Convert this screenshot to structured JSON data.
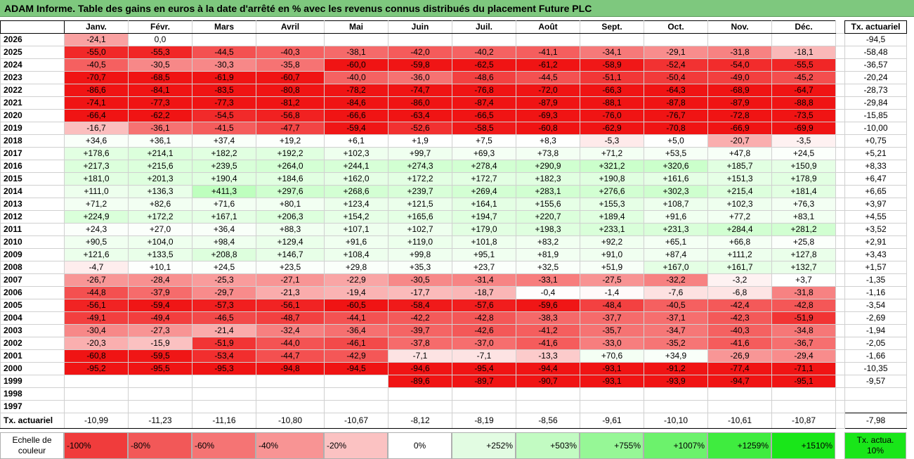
{
  "title": "ADAM Informe. Table des gains en euros à la date d'arrêté en % avec les revenus connus distribués du placement Future PLC",
  "months": [
    "Janv.",
    "Févr.",
    "Mars",
    "Avril",
    "Mai",
    "Juin",
    "Juil.",
    "Août",
    "Sept.",
    "Oct.",
    "Nov.",
    "Déc."
  ],
  "tx_header": "Tx. actuariel",
  "rows": [
    {
      "year": "2026",
      "vals": [
        "-24,1",
        "0,0",
        "",
        "",
        "",
        "",
        "",
        "",
        "",
        "",
        "",
        ""
      ],
      "tx": "-94,5"
    },
    {
      "year": "2025",
      "vals": [
        "-55,0",
        "-55,3",
        "-44,5",
        "-40,3",
        "-38,1",
        "-42,0",
        "-40,2",
        "-41,1",
        "-34,1",
        "-29,1",
        "-31,8",
        "-18,1"
      ],
      "tx": "-58,48"
    },
    {
      "year": "2024",
      "vals": [
        "-40,5",
        "-30,5",
        "-30,3",
        "-35,8",
        "-60,0",
        "-59,8",
        "-62,5",
        "-61,2",
        "-58,9",
        "-52,4",
        "-54,0",
        "-55,5"
      ],
      "tx": "-36,57"
    },
    {
      "year": "2023",
      "vals": [
        "-70,7",
        "-68,5",
        "-61,9",
        "-60,7",
        "-40,0",
        "-36,0",
        "-48,6",
        "-44,5",
        "-51,1",
        "-50,4",
        "-49,0",
        "-45,2"
      ],
      "tx": "-20,24"
    },
    {
      "year": "2022",
      "vals": [
        "-86,6",
        "-84,1",
        "-83,5",
        "-80,8",
        "-78,2",
        "-74,7",
        "-76,8",
        "-72,0",
        "-66,3",
        "-64,3",
        "-68,9",
        "-64,7"
      ],
      "tx": "-28,73"
    },
    {
      "year": "2021",
      "vals": [
        "-74,1",
        "-77,3",
        "-77,3",
        "-81,2",
        "-84,6",
        "-86,0",
        "-87,4",
        "-87,9",
        "-88,1",
        "-87,8",
        "-87,9",
        "-88,8"
      ],
      "tx": "-29,84"
    },
    {
      "year": "2020",
      "vals": [
        "-66,4",
        "-62,2",
        "-54,5",
        "-56,8",
        "-66,6",
        "-63,4",
        "-66,5",
        "-69,3",
        "-76,0",
        "-76,7",
        "-72,8",
        "-73,5"
      ],
      "tx": "-15,85"
    },
    {
      "year": "2019",
      "vals": [
        "-16,7",
        "-36,1",
        "-41,5",
        "-47,7",
        "-59,4",
        "-52,6",
        "-58,5",
        "-60,8",
        "-62,9",
        "-70,8",
        "-66,9",
        "-69,9"
      ],
      "tx": "-10,00"
    },
    {
      "year": "2018",
      "vals": [
        "+34,6",
        "+36,1",
        "+37,4",
        "+19,2",
        "+6,1",
        "+1,9",
        "+7,5",
        "+8,3",
        "-5,3",
        "+5,0",
        "-20,7",
        "-3,5"
      ],
      "tx": "+0,75"
    },
    {
      "year": "2017",
      "vals": [
        "+178,6",
        "+214,1",
        "+182,2",
        "+192,2",
        "+102,3",
        "+99,7",
        "+69,3",
        "+73,8",
        "+71,2",
        "+53,5",
        "+47,8",
        "+24,5"
      ],
      "tx": "+5,21"
    },
    {
      "year": "2016",
      "vals": [
        "+217,3",
        "+215,6",
        "+239,5",
        "+264,0",
        "+244,1",
        "+274,3",
        "+278,4",
        "+290,9",
        "+321,2",
        "+320,6",
        "+185,7",
        "+150,9"
      ],
      "tx": "+8,33"
    },
    {
      "year": "2015",
      "vals": [
        "+181,0",
        "+201,3",
        "+190,4",
        "+184,6",
        "+162,0",
        "+172,2",
        "+172,7",
        "+182,3",
        "+190,8",
        "+161,6",
        "+151,3",
        "+178,9"
      ],
      "tx": "+6,47"
    },
    {
      "year": "2014",
      "vals": [
        "+111,0",
        "+136,3",
        "+411,3",
        "+297,6",
        "+268,6",
        "+239,7",
        "+269,4",
        "+283,1",
        "+276,6",
        "+302,3",
        "+215,4",
        "+181,4"
      ],
      "tx": "+6,65"
    },
    {
      "year": "2013",
      "vals": [
        "+71,2",
        "+82,6",
        "+71,6",
        "+80,1",
        "+123,4",
        "+121,5",
        "+164,1",
        "+155,6",
        "+155,3",
        "+108,7",
        "+102,3",
        "+76,3"
      ],
      "tx": "+3,97"
    },
    {
      "year": "2012",
      "vals": [
        "+224,9",
        "+172,2",
        "+167,1",
        "+206,3",
        "+154,2",
        "+165,6",
        "+194,7",
        "+220,7",
        "+189,4",
        "+91,6",
        "+77,2",
        "+83,1"
      ],
      "tx": "+4,55"
    },
    {
      "year": "2011",
      "vals": [
        "+24,3",
        "+27,0",
        "+36,4",
        "+88,3",
        "+107,1",
        "+102,7",
        "+179,0",
        "+198,3",
        "+233,1",
        "+231,3",
        "+284,4",
        "+281,2"
      ],
      "tx": "+3,52"
    },
    {
      "year": "2010",
      "vals": [
        "+90,5",
        "+104,0",
        "+98,4",
        "+129,4",
        "+91,6",
        "+119,0",
        "+101,8",
        "+83,2",
        "+92,2",
        "+65,1",
        "+66,8",
        "+25,8"
      ],
      "tx": "+2,91"
    },
    {
      "year": "2009",
      "vals": [
        "+121,6",
        "+133,5",
        "+208,8",
        "+146,7",
        "+108,4",
        "+99,8",
        "+95,1",
        "+81,9",
        "+91,0",
        "+87,4",
        "+111,2",
        "+127,8"
      ],
      "tx": "+3,43"
    },
    {
      "year": "2008",
      "vals": [
        "-4,7",
        "+10,1",
        "+24,5",
        "+23,5",
        "+29,8",
        "+35,3",
        "+23,7",
        "+32,5",
        "+51,9",
        "+167,0",
        "+161,7",
        "+132,7"
      ],
      "tx": "+1,57"
    },
    {
      "year": "2007",
      "vals": [
        "-26,7",
        "-28,4",
        "-25,3",
        "-27,1",
        "-22,9",
        "-30,5",
        "-31,4",
        "-33,1",
        "-27,5",
        "-32,2",
        "-3,2",
        "+3,7"
      ],
      "tx": "-1,35"
    },
    {
      "year": "2006",
      "vals": [
        "-44,8",
        "-37,9",
        "-29,7",
        "-21,3",
        "-19,4",
        "-17,7",
        "-18,7",
        "-0,4",
        "-1,4",
        "-7,6",
        "-6,8",
        "-31,8"
      ],
      "tx": "-1,16"
    },
    {
      "year": "2005",
      "vals": [
        "-56,1",
        "-59,4",
        "-57,3",
        "-56,1",
        "-60,5",
        "-58,4",
        "-57,6",
        "-59,6",
        "-48,4",
        "-40,5",
        "-42,4",
        "-42,8"
      ],
      "tx": "-3,54"
    },
    {
      "year": "2004",
      "vals": [
        "-49,1",
        "-49,4",
        "-46,5",
        "-48,7",
        "-44,1",
        "-42,2",
        "-42,8",
        "-38,3",
        "-37,7",
        "-37,1",
        "-42,3",
        "-51,9"
      ],
      "tx": "-2,69"
    },
    {
      "year": "2003",
      "vals": [
        "-30,4",
        "-27,3",
        "-21,4",
        "-32,4",
        "-36,4",
        "-39,7",
        "-42,6",
        "-41,2",
        "-35,7",
        "-34,7",
        "-40,3",
        "-34,8"
      ],
      "tx": "-1,94"
    },
    {
      "year": "2002",
      "vals": [
        "-20,3",
        "-15,9",
        "-51,9",
        "-44,0",
        "-46,1",
        "-37,8",
        "-37,0",
        "-41,6",
        "-33,0",
        "-35,2",
        "-41,6",
        "-36,7"
      ],
      "tx": "-2,05"
    },
    {
      "year": "2001",
      "vals": [
        "-60,8",
        "-59,5",
        "-53,4",
        "-44,7",
        "-42,9",
        "-7,1",
        "-7,1",
        "-13,3",
        "+70,6",
        "+34,9",
        "-26,9",
        "-29,4"
      ],
      "tx": "-1,66"
    },
    {
      "year": "2000",
      "vals": [
        "-95,2",
        "-95,5",
        "-95,3",
        "-94,8",
        "-94,5",
        "-94,6",
        "-95,4",
        "-94,4",
        "-93,1",
        "-91,2",
        "-77,4",
        "-71,1"
      ],
      "tx": "-10,35"
    },
    {
      "year": "1999",
      "vals": [
        "",
        "",
        "",
        "",
        "",
        "-89,6",
        "-89,7",
        "-90,7",
        "-93,1",
        "-93,9",
        "-94,7",
        "-95,1"
      ],
      "tx": "-9,57"
    },
    {
      "year": "1998",
      "vals": [
        "",
        "",
        "",
        "",
        "",
        "",
        "",
        "",
        "",
        "",
        "",
        ""
      ],
      "tx": ""
    },
    {
      "year": "1997",
      "vals": [
        "",
        "",
        "",
        "",
        "",
        "",
        "",
        "",
        "",
        "",
        "",
        ""
      ],
      "tx": ""
    }
  ],
  "footer": {
    "label": "Tx. actuariel",
    "vals": [
      "-10,99",
      "-11,23",
      "-11,16",
      "-10,80",
      "-10,67",
      "-8,12",
      "-8,19",
      "-8,56",
      "-9,61",
      "-10,10",
      "-10,61",
      "-10,87"
    ],
    "tx": "-7,98"
  },
  "legend": {
    "label": "Echelle de couleur",
    "items": [
      {
        "text": "-100%",
        "color": "#f03c3c"
      },
      {
        "text": "-80%",
        "color": "#f25858"
      },
      {
        "text": "-60%",
        "color": "#f57474"
      },
      {
        "text": "-40%",
        "color": "#f89494"
      },
      {
        "text": "-20%",
        "color": "#fbc2c2"
      },
      {
        "text": "0%",
        "color": "#ffffff"
      },
      {
        "text": "+252%",
        "color": "#e2fce2"
      },
      {
        "text": "+503%",
        "color": "#c2fbc2"
      },
      {
        "text": "+755%",
        "color": "#96f796"
      },
      {
        "text": "+1007%",
        "color": "#6cf26c"
      },
      {
        "text": "+1259%",
        "color": "#3fec3f"
      },
      {
        "text": "+1510%",
        "color": "#19e619"
      }
    ],
    "tx_label": "Tx. actua. 10%",
    "tx_color": "#19e619"
  }
}
